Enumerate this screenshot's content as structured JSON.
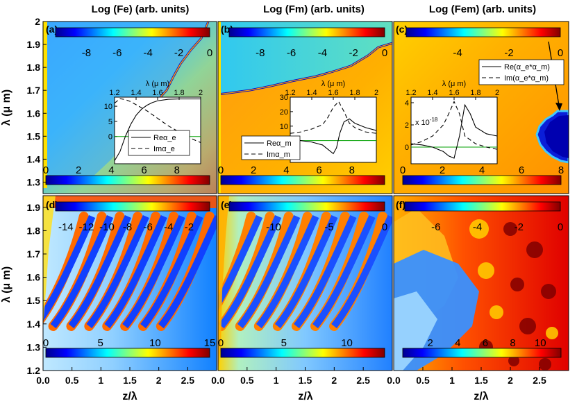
{
  "colors": {
    "jet": [
      "#00008f",
      "#0000ff",
      "#0080ff",
      "#00ffff",
      "#80ff80",
      "#ffff00",
      "#ff8000",
      "#ff0000",
      "#800000"
    ],
    "green_line": "#00a000",
    "black": "#000000"
  },
  "chart_data": [
    {
      "id": "a",
      "panel_label": "(a)",
      "type": "heatmap",
      "title": "Log (Fe) (arb. units)",
      "xlabel": "",
      "ylabel": "λ (μ m)",
      "xlim": [
        0,
        3
      ],
      "ylim": [
        1.25,
        2.0
      ],
      "yticks": [
        "1.3",
        "1.4",
        "1.5",
        "1.6",
        "1.7",
        "1.8",
        "1.9",
        "2"
      ],
      "colorbar_top": {
        "ticks": [
          "-8",
          "-6",
          "-4",
          "-2",
          "0"
        ],
        "range": [
          -10,
          0
        ]
      },
      "colorbar_bottom": {
        "ticks": [
          "0",
          "2",
          "4",
          "6",
          "8"
        ],
        "range": [
          0,
          10
        ]
      },
      "inset": {
        "type": "line",
        "xlabel": "λ (μ m)",
        "xticks": [
          "1.2",
          "1.4",
          "1.6",
          "1.8",
          "2"
        ],
        "xlim": [
          1.2,
          2.0
        ],
        "yticks": [
          "0",
          "5",
          "10"
        ],
        "ylim": [
          -9,
          13
        ],
        "series": [
          {
            "name": "Reα_e",
            "style": "solid",
            "x": [
              1.2,
              1.25,
              1.3,
              1.35,
              1.4,
              1.45,
              1.5,
              1.55,
              1.6,
              1.7,
              1.8,
              1.9,
              2.0
            ],
            "y": [
              -8,
              -5,
              0,
              4,
              7,
              9,
              10.3,
              11.2,
              11.8,
              12.3,
              12.4,
              12.4,
              12.4
            ]
          },
          {
            "name": "Imα_e",
            "style": "dashed",
            "x": [
              1.2,
              1.25,
              1.3,
              1.35,
              1.4,
              1.5,
              1.6,
              1.7,
              1.8,
              1.9,
              2.0
            ],
            "y": [
              11,
              12.5,
              12.2,
              11.5,
              10.5,
              8.5,
              6,
              3.5,
              1.5,
              -0.5,
              -2
            ]
          }
        ],
        "legend": [
          "Reα_e",
          "Imα_e"
        ]
      }
    },
    {
      "id": "b",
      "panel_label": "(b)",
      "type": "heatmap",
      "title": "Log (Fm) (arb. units)",
      "xlim": [
        0,
        3
      ],
      "ylim": [
        1.25,
        2.0
      ],
      "colorbar_top": {
        "ticks": [
          "-8",
          "-6",
          "-4",
          "-2",
          "0"
        ],
        "range": [
          -10,
          0
        ]
      },
      "colorbar_bottom": {
        "ticks": [
          "0",
          "2",
          "4",
          "6",
          "8"
        ],
        "range": [
          0,
          10
        ]
      },
      "inset": {
        "type": "line",
        "xlabel": "λ (μ m)",
        "xticks": [
          "1.2",
          "1.4",
          "1.6",
          "1.8",
          "2"
        ],
        "xlim": [
          1.2,
          2.0
        ],
        "yticks": [
          "0",
          "10",
          "20",
          "30"
        ],
        "ylim": [
          -15,
          30
        ],
        "series": [
          {
            "name": "Reα_m",
            "style": "solid",
            "x": [
              1.2,
              1.3,
              1.4,
              1.5,
              1.55,
              1.6,
              1.63,
              1.66,
              1.7,
              1.75,
              1.8,
              1.9,
              2.0
            ],
            "y": [
              1,
              0,
              -1,
              -3,
              -6,
              -9,
              -5,
              5,
              13,
              15,
              12,
              9,
              7
            ]
          },
          {
            "name": "Imα_m",
            "style": "dashed",
            "x": [
              1.2,
              1.3,
              1.4,
              1.5,
              1.55,
              1.6,
              1.65,
              1.7,
              1.75,
              1.8,
              1.9,
              2.0
            ],
            "y": [
              5,
              6,
              8,
              11,
              16,
              23,
              27,
              20,
              12,
              9,
              6,
              5
            ]
          }
        ],
        "legend": [
          "Reα_m",
          "Imα_m"
        ]
      }
    },
    {
      "id": "c",
      "panel_label": "(c)",
      "type": "heatmap",
      "title": "Log (Fem) (arb. units)",
      "xlim": [
        0,
        3
      ],
      "ylim": [
        1.25,
        2.0
      ],
      "colorbar_top": {
        "ticks": [
          "-4",
          "-2",
          "0"
        ],
        "range": [
          -6,
          0
        ]
      },
      "colorbar_bottom": {
        "ticks": [
          "0",
          "2",
          "4",
          "6",
          "8"
        ],
        "range": [
          0,
          8
        ]
      },
      "inset": {
        "type": "line",
        "xlabel": "λ (μ m)",
        "xticks": [
          "1.2",
          "1.4",
          "1.6",
          "1.8",
          "2"
        ],
        "xlim": [
          1.2,
          2.0
        ],
        "yticks": [
          "0",
          "2",
          "4"
        ],
        "ylim": [
          -1.5,
          4.5
        ],
        "scale_note": "x 10",
        "scale_exp": "-18",
        "series": [
          {
            "name": "Re(α_e*α_m)",
            "style": "solid",
            "x": [
              1.2,
              1.3,
              1.4,
              1.5,
              1.55,
              1.6,
              1.65,
              1.7,
              1.75,
              1.8,
              1.9,
              2.0
            ],
            "y": [
              0.3,
              0.2,
              0,
              -0.4,
              -0.8,
              -1,
              1,
              3.8,
              3,
              1.8,
              1.2,
              1
            ]
          },
          {
            "name": "Im(α_e*α_m)",
            "style": "dashed",
            "x": [
              1.2,
              1.3,
              1.4,
              1.5,
              1.55,
              1.6,
              1.65,
              1.7,
              1.8,
              1.9,
              2.0
            ],
            "y": [
              0.2,
              0.5,
              1,
              2,
              3,
              4.1,
              3,
              1,
              0.3,
              0,
              -0.2
            ]
          }
        ],
        "legend": [
          "Re(α_e*α_m)",
          "Im(α_e*α_m)"
        ]
      }
    },
    {
      "id": "d",
      "panel_label": "(d)",
      "type": "heatmap",
      "xlabel": "z/λ",
      "ylabel": "λ (μ m)",
      "xlim": [
        0,
        3
      ],
      "ylim": [
        1.2,
        1.95
      ],
      "xticks": [
        "0.0",
        "0.5",
        "1",
        "1.5",
        "2",
        "2.5"
      ],
      "yticks": [
        "1.2",
        "1.3",
        "1.4",
        "1.5",
        "1.6",
        "1.7",
        "1.8",
        "1.9"
      ],
      "colorbar_top": {
        "ticks": [
          "-14",
          "-12",
          "-10",
          "-8",
          "-6",
          "-4",
          "-2"
        ],
        "range": [
          -15,
          0
        ]
      },
      "colorbar_bottom": {
        "ticks": [
          "0",
          "5",
          "10",
          "15"
        ],
        "range": [
          0,
          15
        ]
      }
    },
    {
      "id": "e",
      "panel_label": "(e)",
      "type": "heatmap",
      "xlabel": "z/λ",
      "xlim": [
        0,
        3
      ],
      "ylim": [
        1.2,
        1.95
      ],
      "xticks": [
        "0.0",
        "0.5",
        "1",
        "1.5",
        "2",
        "2.5"
      ],
      "colorbar_top": {
        "ticks": [
          "-10",
          "-5",
          "0"
        ],
        "range": [
          -14,
          0
        ]
      },
      "colorbar_bottom": {
        "ticks": [
          "0",
          "5",
          "10"
        ],
        "range": [
          0,
          13
        ]
      }
    },
    {
      "id": "f",
      "panel_label": "(f)",
      "type": "heatmap",
      "xlabel": "z/λ",
      "xlim": [
        0,
        3
      ],
      "ylim": [
        1.2,
        1.95
      ],
      "xticks": [
        "0.0",
        "0.5",
        "1",
        "1.5",
        "2",
        "2.5"
      ],
      "colorbar_top": {
        "ticks": [
          "-6",
          "-4",
          "-2",
          "0"
        ],
        "range": [
          -7.5,
          0
        ]
      },
      "colorbar_bottom": {
        "ticks": [
          "2",
          "4",
          "6",
          "8",
          "10"
        ],
        "range": [
          0,
          11.5
        ]
      }
    }
  ]
}
